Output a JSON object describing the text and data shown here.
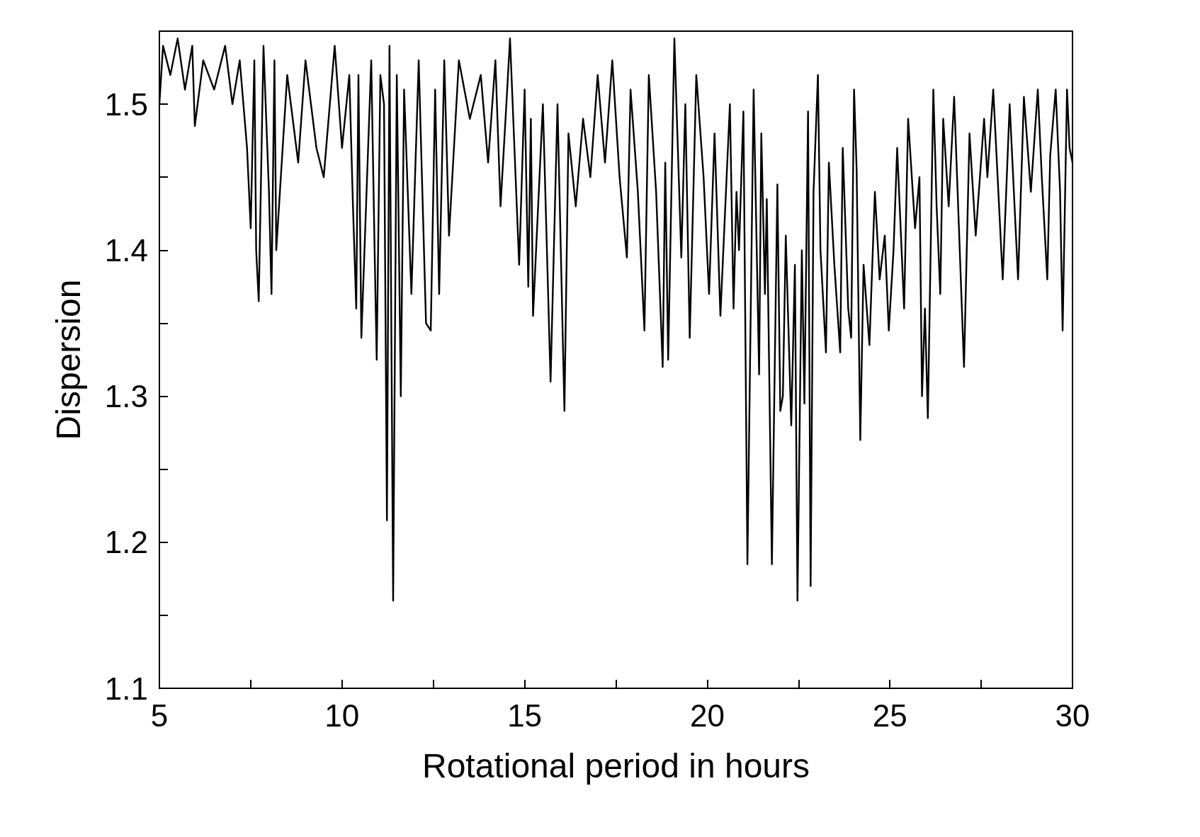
{
  "chart_data": {
    "type": "line",
    "xlabel": "Rotational period in hours",
    "ylabel": "Dispersion",
    "xlim": [
      5,
      30
    ],
    "ylim": [
      1.1,
      1.55
    ],
    "xticks": [
      5,
      {
        "value": 7.5,
        "label": null
      },
      10,
      {
        "value": 12.5,
        "label": null
      },
      15,
      {
        "value": 17.5,
        "label": null
      },
      20,
      {
        "value": 22.5,
        "label": null
      },
      25,
      {
        "value": 27.5,
        "label": null
      },
      30
    ],
    "yticks": [
      1.1,
      {
        "value": 1.15,
        "label": null
      },
      1.2,
      {
        "value": 1.25,
        "label": null
      },
      1.3,
      {
        "value": 1.35,
        "label": null
      },
      1.4,
      {
        "value": 1.45,
        "label": null
      },
      1.5
    ],
    "grid": false,
    "marker": "none",
    "line_style": "solid",
    "series": [
      {
        "color": "#000000",
        "x": [
          5.0,
          5.1,
          5.3,
          5.5,
          5.7,
          5.9,
          5.97,
          6.2,
          6.5,
          6.8,
          7.0,
          7.2,
          7.4,
          7.5,
          7.6,
          7.65,
          7.72,
          7.85,
          8.0,
          8.07,
          8.15,
          8.2,
          8.3,
          8.5,
          8.8,
          9.0,
          9.3,
          9.5,
          9.8,
          10.0,
          10.2,
          10.3,
          10.39,
          10.45,
          10.53,
          10.8,
          10.9,
          10.95,
          11.05,
          11.15,
          11.23,
          11.3,
          11.4,
          11.5,
          11.61,
          11.7,
          11.9,
          12.1,
          12.3,
          12.43,
          12.55,
          12.66,
          12.8,
          12.93,
          13.2,
          13.5,
          13.8,
          14.0,
          14.2,
          14.34,
          14.5,
          14.6,
          14.85,
          15.0,
          15.1,
          15.17,
          15.23,
          15.5,
          15.71,
          15.9,
          16.09,
          16.2,
          16.4,
          16.6,
          16.8,
          17.0,
          17.2,
          17.4,
          17.6,
          17.8,
          17.9,
          18.1,
          18.28,
          18.4,
          18.6,
          18.78,
          18.85,
          18.93,
          19.1,
          19.29,
          19.4,
          19.52,
          19.7,
          19.9,
          20.05,
          20.2,
          20.36,
          20.62,
          20.72,
          20.8,
          20.87,
          20.99,
          21.1,
          21.27,
          21.42,
          21.48,
          21.58,
          21.63,
          21.77,
          21.92,
          22.0,
          22.07,
          22.15,
          22.3,
          22.4,
          22.47,
          22.59,
          22.66,
          22.76,
          22.83,
          22.91,
          23.03,
          23.1,
          23.25,
          23.33,
          23.48,
          23.64,
          23.71,
          23.86,
          23.94,
          24.02,
          24.09,
          24.19,
          24.28,
          24.44,
          24.59,
          24.72,
          24.86,
          24.97,
          25.1,
          25.2,
          25.39,
          25.5,
          25.69,
          25.81,
          25.88,
          25.96,
          26.04,
          26.19,
          26.28,
          26.38,
          26.46,
          26.61,
          26.76,
          27.03,
          27.18,
          27.35,
          27.58,
          27.67,
          27.83,
          28.09,
          28.28,
          28.51,
          28.67,
          28.86,
          29.05,
          29.16,
          29.31,
          29.39,
          29.54,
          29.66,
          29.73,
          29.85,
          29.92,
          30.0
        ],
        "values": [
          1.5,
          1.54,
          1.52,
          1.545,
          1.51,
          1.54,
          1.485,
          1.53,
          1.51,
          1.54,
          1.5,
          1.53,
          1.47,
          1.415,
          1.53,
          1.4,
          1.365,
          1.54,
          1.44,
          1.37,
          1.53,
          1.4,
          1.44,
          1.52,
          1.46,
          1.53,
          1.47,
          1.45,
          1.54,
          1.47,
          1.52,
          1.43,
          1.36,
          1.52,
          1.34,
          1.53,
          1.39,
          1.325,
          1.52,
          1.5,
          1.215,
          1.54,
          1.16,
          1.52,
          1.3,
          1.51,
          1.37,
          1.53,
          1.35,
          1.345,
          1.51,
          1.37,
          1.53,
          1.41,
          1.53,
          1.49,
          1.52,
          1.46,
          1.53,
          1.43,
          1.5,
          1.545,
          1.39,
          1.51,
          1.375,
          1.49,
          1.355,
          1.5,
          1.31,
          1.5,
          1.29,
          1.48,
          1.43,
          1.49,
          1.45,
          1.52,
          1.46,
          1.53,
          1.45,
          1.395,
          1.51,
          1.44,
          1.345,
          1.52,
          1.44,
          1.32,
          1.46,
          1.325,
          1.545,
          1.395,
          1.5,
          1.34,
          1.52,
          1.45,
          1.37,
          1.48,
          1.355,
          1.5,
          1.36,
          1.44,
          1.4,
          1.495,
          1.185,
          1.51,
          1.315,
          1.48,
          1.37,
          1.435,
          1.185,
          1.445,
          1.29,
          1.3,
          1.41,
          1.28,
          1.39,
          1.16,
          1.4,
          1.295,
          1.495,
          1.17,
          1.44,
          1.52,
          1.4,
          1.33,
          1.46,
          1.39,
          1.33,
          1.47,
          1.36,
          1.34,
          1.51,
          1.455,
          1.27,
          1.39,
          1.335,
          1.44,
          1.38,
          1.41,
          1.345,
          1.4,
          1.47,
          1.36,
          1.49,
          1.415,
          1.45,
          1.3,
          1.36,
          1.285,
          1.51,
          1.43,
          1.37,
          1.49,
          1.43,
          1.505,
          1.32,
          1.48,
          1.41,
          1.49,
          1.45,
          1.51,
          1.38,
          1.5,
          1.38,
          1.505,
          1.44,
          1.51,
          1.45,
          1.38,
          1.465,
          1.51,
          1.44,
          1.345,
          1.51,
          1.47,
          1.46
        ]
      }
    ]
  }
}
